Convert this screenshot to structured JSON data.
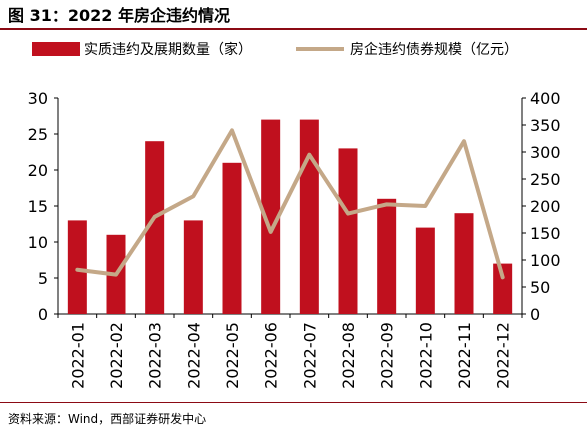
{
  "figure": {
    "title": "图 31：2022 年房企违约情况",
    "source": "资料来源：Wind，西部证券研发中心"
  },
  "colors": {
    "bar": "#c0101e",
    "line": "#c4a888",
    "rule": "#8b0a14",
    "axis": "#000000"
  },
  "chart_data": {
    "type": "bar+line",
    "title": "",
    "categories": [
      "2022-01",
      "2022-02",
      "2022-03",
      "2022-04",
      "2022-05",
      "2022-06",
      "2022-07",
      "2022-08",
      "2022-09",
      "2022-10",
      "2022-11",
      "2022-12"
    ],
    "series": [
      {
        "name": "实质违约及展期数量（家）",
        "type": "bar",
        "axis": "left",
        "values": [
          13,
          11,
          24,
          13,
          21,
          27,
          27,
          23,
          16,
          12,
          14,
          7
        ]
      },
      {
        "name": "房企违约债券规模（亿元）",
        "type": "line",
        "axis": "right",
        "values": [
          82,
          73,
          180,
          218,
          340,
          152,
          295,
          186,
          203,
          200,
          320,
          68
        ]
      }
    ],
    "y_left": {
      "min": 0,
      "max": 30,
      "ticks": [
        0,
        5,
        10,
        15,
        20,
        25,
        30
      ]
    },
    "y_right": {
      "min": 0,
      "max": 400,
      "ticks": [
        0,
        50,
        100,
        150,
        200,
        250,
        300,
        350,
        400
      ]
    },
    "legend": "top",
    "grid": false
  }
}
